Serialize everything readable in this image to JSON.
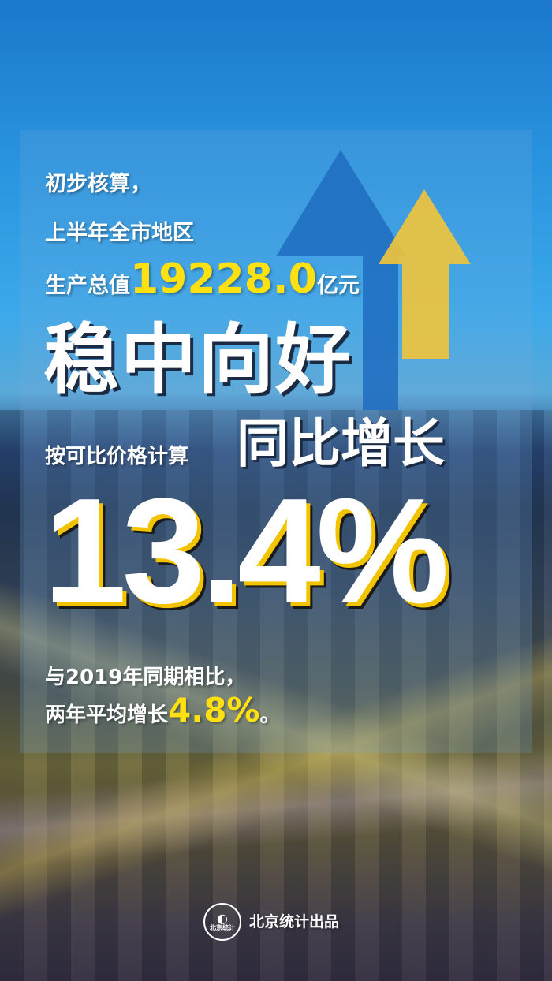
{
  "text": {
    "line1": "初步核算，",
    "line2": "上半年全市地区",
    "line3_prefix": "生产总值",
    "gdp_value": "19228.0",
    "line3_suffix": "亿元",
    "headline": "稳中向好",
    "basis": "按可比价格计算",
    "growth_label": "同比增长",
    "growth_value": "13.4%",
    "line_2019": "与2019年同期相比，",
    "avg_prefix": "两年平均增长",
    "avg_value": "4.8%",
    "avg_suffix": "。"
  },
  "footer": {
    "logo_text": "北京统计",
    "credit": "北京统计出品"
  },
  "colors": {
    "highlight": "#ffe010",
    "arrow_blue": "#1f6cc0",
    "arrow_yellow": "#f2c43a"
  }
}
